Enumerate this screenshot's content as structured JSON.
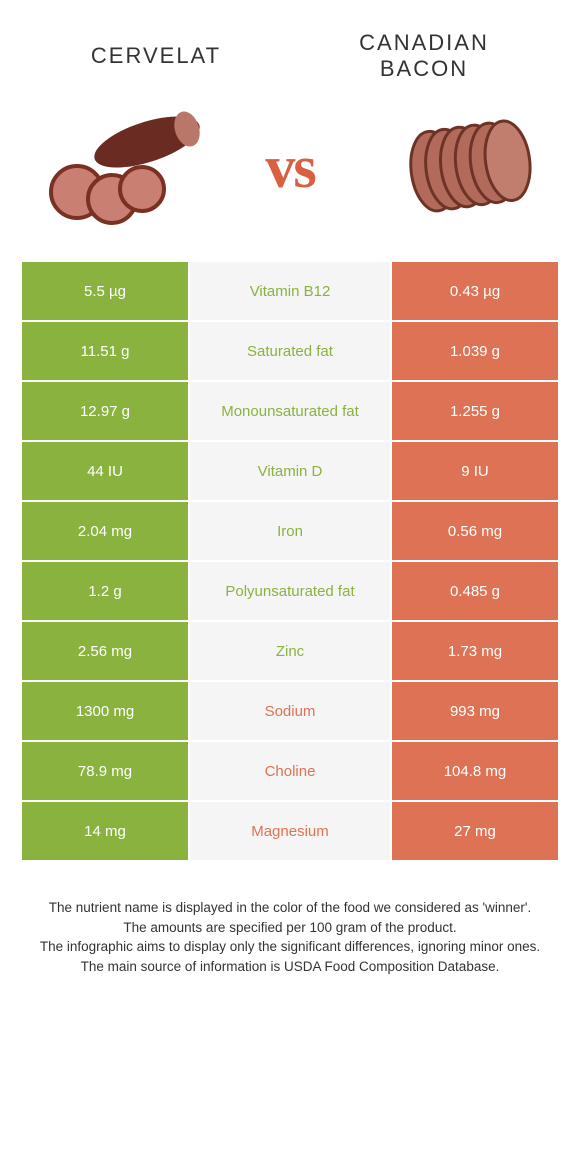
{
  "header": {
    "left_title": "CERVELAT",
    "right_title": "CANADIAN BACON",
    "vs_label": "vs"
  },
  "colors": {
    "left": "#8ab23f",
    "right": "#dd7255",
    "mid_bg": "#f5f5f5",
    "page_bg": "#ffffff",
    "text": "#333333"
  },
  "table": {
    "rows": [
      {
        "left": "5.5 µg",
        "label": "Vitamin B12",
        "right": "0.43 µg",
        "winner": "left"
      },
      {
        "left": "11.51 g",
        "label": "Saturated fat",
        "right": "1.039 g",
        "winner": "left"
      },
      {
        "left": "12.97 g",
        "label": "Monounsaturated fat",
        "right": "1.255 g",
        "winner": "left"
      },
      {
        "left": "44 IU",
        "label": "Vitamin D",
        "right": "9 IU",
        "winner": "left"
      },
      {
        "left": "2.04 mg",
        "label": "Iron",
        "right": "0.56 mg",
        "winner": "left"
      },
      {
        "left": "1.2 g",
        "label": "Polyunsaturated fat",
        "right": "0.485 g",
        "winner": "left"
      },
      {
        "left": "2.56 mg",
        "label": "Zinc",
        "right": "1.73 mg",
        "winner": "left"
      },
      {
        "left": "1300 mg",
        "label": "Sodium",
        "right": "993 mg",
        "winner": "right"
      },
      {
        "left": "78.9 mg",
        "label": "Choline",
        "right": "104.8 mg",
        "winner": "right"
      },
      {
        "left": "14 mg",
        "label": "Magnesium",
        "right": "27 mg",
        "winner": "right"
      }
    ]
  },
  "footer": {
    "line1": "The nutrient name is displayed in the color of the food we considered as 'winner'.",
    "line2": "The amounts are specified per 100 gram of the product.",
    "line3": "The infographic aims to display only the significant differences, ignoring minor ones.",
    "line4": "The main source of information is USDA Food Composition Database."
  }
}
